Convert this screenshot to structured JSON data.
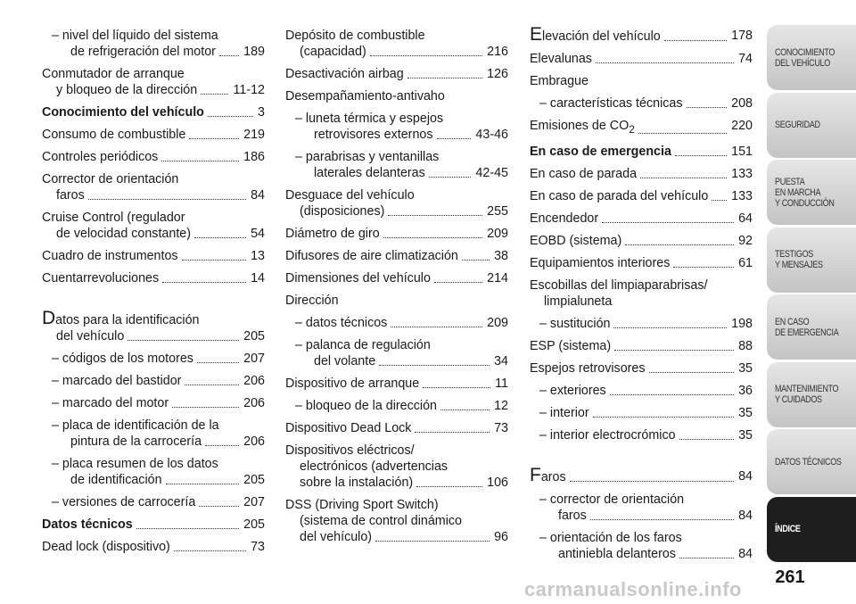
{
  "columns": [
    {
      "groups": [
        {
          "entries": [
            {
              "lines": [
                "– nivel del líquido del sistema",
                "de refrigeración del motor"
              ],
              "page": "189"
            },
            {
              "lines": [
                "Conmutador de arranque",
                "y bloqueo de la dirección"
              ],
              "page": "11-12"
            },
            {
              "lines": [
                "Conocimiento del vehículo"
              ],
              "page": "3",
              "bold": true
            },
            {
              "lines": [
                "Consumo de combustible"
              ],
              "page": "219"
            },
            {
              "lines": [
                "Controles periódicos"
              ],
              "page": "186"
            },
            {
              "lines": [
                "Corrector de orientación",
                "faros"
              ],
              "page": "84"
            },
            {
              "lines": [
                "Cruise Control (regulador",
                "de velocidad constante)"
              ],
              "page": "54"
            },
            {
              "lines": [
                "Cuadro de instrumentos"
              ],
              "page": "13"
            },
            {
              "lines": [
                "Cuentarrevoluciones"
              ],
              "page": "14"
            }
          ]
        },
        {
          "letter": "D",
          "entries": [
            {
              "lines": [
                "atos para la identificación",
                "del vehículo"
              ],
              "page": "205"
            },
            {
              "lines": [
                "– códigos de los motores"
              ],
              "page": "207"
            },
            {
              "lines": [
                "– marcado del bastidor"
              ],
              "page": "206"
            },
            {
              "lines": [
                "– marcado del motor"
              ],
              "page": "206"
            },
            {
              "lines": [
                "– placa de identificación de la",
                "pintura de la carrocería"
              ],
              "page": "206"
            },
            {
              "lines": [
                "– placa resumen de los datos",
                "de identificación"
              ],
              "page": "205"
            },
            {
              "lines": [
                "– versiones de carrocería"
              ],
              "page": "207"
            },
            {
              "lines": [
                "Datos técnicos"
              ],
              "page": "205",
              "bold": true
            },
            {
              "lines": [
                "Dead lock (dispositivo)"
              ],
              "page": "73"
            }
          ]
        }
      ]
    },
    {
      "groups": [
        {
          "entries": [
            {
              "lines": [
                "Depósito de combustible",
                "(capacidad)"
              ],
              "page": "216"
            },
            {
              "lines": [
                "Desactivación airbag"
              ],
              "page": "126"
            },
            {
              "lines": [
                "Desempañamiento-antivaho"
              ]
            },
            {
              "lines": [
                "– luneta térmica y espejos",
                "retrovisores externos"
              ],
              "page": "43-46"
            },
            {
              "lines": [
                "– parabrisas y ventanillas",
                "laterales delanteras"
              ],
              "page": "42-45"
            },
            {
              "lines": [
                "Desguace del vehículo",
                "(disposiciones)"
              ],
              "page": "255"
            },
            {
              "lines": [
                "Diámetro de giro"
              ],
              "page": "209"
            },
            {
              "lines": [
                "Difusores de aire climatización"
              ],
              "page": "38"
            },
            {
              "lines": [
                "Dimensiones del vehículo"
              ],
              "page": "214"
            },
            {
              "lines": [
                "Dirección"
              ]
            },
            {
              "lines": [
                "– datos técnicos"
              ],
              "page": "209"
            },
            {
              "lines": [
                "– palanca de regulación",
                "del volante"
              ],
              "page": "34"
            },
            {
              "lines": [
                "Dispositivo de arranque"
              ],
              "page": "11"
            },
            {
              "lines": [
                "– bloqueo de la dirección"
              ],
              "page": "12"
            },
            {
              "lines": [
                "Dispositivo Dead Lock"
              ],
              "page": "73"
            },
            {
              "lines": [
                "Dispositivos eléctricos/",
                "electrónicos (advertencias",
                "sobre la instalación)"
              ],
              "page": "106"
            },
            {
              "lines": [
                "DSS (Driving Sport Switch)",
                "(sistema de control dinámico",
                "del vehículo)"
              ],
              "page": "96"
            }
          ]
        }
      ]
    },
    {
      "groups": [
        {
          "letter": "E",
          "entries": [
            {
              "lines": [
                "levación del vehículo"
              ],
              "page": "178"
            },
            {
              "lines": [
                "Elevalunas"
              ],
              "page": "74"
            },
            {
              "lines": [
                "Embrague"
              ]
            },
            {
              "lines": [
                "– características técnicas"
              ],
              "page": "208"
            },
            {
              "lines": [
                "Emisiones de CO"
              ],
              "subscript": "2",
              "page": "220"
            },
            {
              "lines": [
                "En caso de emergencia"
              ],
              "page": "151",
              "bold": true
            },
            {
              "lines": [
                "En caso de parada"
              ],
              "page": "133"
            },
            {
              "lines": [
                "En caso de parada del vehículo"
              ],
              "page": "133"
            },
            {
              "lines": [
                "Encendedor"
              ],
              "page": "64"
            },
            {
              "lines": [
                "EOBD (sistema)"
              ],
              "page": "92"
            },
            {
              "lines": [
                "Equipamientos interiores"
              ],
              "page": "61"
            },
            {
              "lines": [
                "Escobillas del limpiaparabrisas/",
                "limpialuneta"
              ]
            },
            {
              "lines": [
                "– sustitución"
              ],
              "page": "198"
            },
            {
              "lines": [
                "ESP (sistema)"
              ],
              "page": "88"
            },
            {
              "lines": [
                "Espejos retrovisores"
              ],
              "page": "35"
            },
            {
              "lines": [
                "– exteriores"
              ],
              "page": "36"
            },
            {
              "lines": [
                "– interior"
              ],
              "page": "35"
            },
            {
              "lines": [
                "– interior electrocrómico"
              ],
              "page": "35"
            }
          ]
        },
        {
          "letter": "F",
          "entries": [
            {
              "lines": [
                "aros"
              ],
              "page": "84"
            },
            {
              "lines": [
                "– corrector de orientación",
                "faros"
              ],
              "page": "84"
            },
            {
              "lines": [
                "– orientación de los faros",
                "antiniebla delanteros"
              ],
              "page": "84"
            }
          ]
        }
      ]
    }
  ],
  "sidebar": {
    "active_tab": 7,
    "tabs": [
      {
        "lines": [
          "CONOCIMIENTO",
          "DEL VEHÍCULO"
        ]
      },
      {
        "lines": [
          "SEGURIDAD"
        ]
      },
      {
        "lines": [
          "PUESTA",
          "EN MARCHA",
          "Y CONDUCCIÓN"
        ]
      },
      {
        "lines": [
          "TESTIGOS",
          "Y MENSAJES"
        ]
      },
      {
        "lines": [
          "EN CASO",
          "DE EMERGENCIA"
        ]
      },
      {
        "lines": [
          "MANTENIMIENTO",
          "Y CUIDADOS"
        ]
      },
      {
        "lines": [
          "DATOS TÉCNICOS"
        ]
      },
      {
        "lines": [
          "ÍNDICE"
        ]
      }
    ]
  },
  "page_number": "261",
  "watermark": "carmanualsonline.info"
}
